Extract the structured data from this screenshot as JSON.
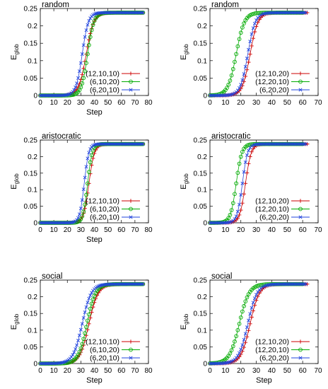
{
  "chart_data": [
    {
      "type": "line",
      "title": "random",
      "xlabel": "Step",
      "ylabel": "E",
      "ylabel_sub": "glob",
      "xlim": [
        0,
        80
      ],
      "ylim": [
        0,
        0.25
      ],
      "xticks": [
        "0",
        "10",
        "20",
        "30",
        "40",
        "50",
        "60",
        "70",
        "80"
      ],
      "yticks": [
        "0",
        "0.05",
        "0.1",
        "0.15",
        "0.2",
        "0.25"
      ],
      "legend": "bottom-right",
      "series": [
        {
          "name": "(12,10,10)",
          "marker": "plus",
          "color": "#cc0000",
          "x_end": 76,
          "mid": 34,
          "k": 0.36
        },
        {
          "name": "(6,10,20)",
          "marker": "circle",
          "color": "#00aa00",
          "x_end": 76,
          "mid": 35,
          "k": 0.44
        },
        {
          "name": "(6,20,10)",
          "marker": "cross",
          "color": "#2244dd",
          "x_end": 76,
          "mid": 31,
          "k": 0.44
        }
      ],
      "plateau": 0.238
    },
    {
      "type": "line",
      "title": "random",
      "xlabel": "",
      "ylabel": "E",
      "ylabel_sub": "glob",
      "xlim": [
        0,
        70
      ],
      "ylim": [
        0,
        0.25
      ],
      "xticks": [
        "0",
        "10",
        "20",
        "30",
        "40",
        "50",
        "60",
        "70"
      ],
      "yticks": [
        "0",
        "0.05",
        "0.1",
        "0.15",
        "0.2",
        "0.25"
      ],
      "legend": "bottom-right",
      "series": [
        {
          "name": "(12,10,20)",
          "marker": "plus",
          "color": "#cc0000",
          "x_end": 63,
          "mid": 26,
          "k": 0.4
        },
        {
          "name": "(12,20,10)",
          "marker": "circle",
          "color": "#00aa00",
          "x_end": 60,
          "mid": 17,
          "k": 0.38
        },
        {
          "name": "(6,20,20)",
          "marker": "cross",
          "color": "#2244dd",
          "x_end": 62,
          "mid": 24.5,
          "k": 0.42
        }
      ],
      "plateau": 0.238
    },
    {
      "type": "line",
      "title": "aristocratic",
      "xlabel": "Step",
      "ylabel": "E",
      "ylabel_sub": "glob",
      "xlim": [
        0,
        80
      ],
      "ylim": [
        0,
        0.25
      ],
      "xticks": [
        "0",
        "10",
        "20",
        "30",
        "40",
        "50",
        "60",
        "70",
        "80"
      ],
      "yticks": [
        "0",
        "0.05",
        "0.1",
        "0.15",
        "0.2",
        "0.25"
      ],
      "legend": "bottom-right",
      "series": [
        {
          "name": "(12,10,10)",
          "marker": "plus",
          "color": "#cc0000",
          "x_end": 76,
          "mid": 36,
          "k": 0.5
        },
        {
          "name": "(6,10,20)",
          "marker": "circle",
          "color": "#00aa00",
          "x_end": 76,
          "mid": 35,
          "k": 0.6
        },
        {
          "name": "(6,20,10)",
          "marker": "cross",
          "color": "#2244dd",
          "x_end": 76,
          "mid": 32.5,
          "k": 0.6
        }
      ],
      "plateau": 0.238
    },
    {
      "type": "line",
      "title": "aristocratic",
      "xlabel": "",
      "ylabel": "E",
      "ylabel_sub": "glob",
      "xlim": [
        0,
        70
      ],
      "ylim": [
        0,
        0.25
      ],
      "xticks": [
        "0",
        "10",
        "20",
        "30",
        "40",
        "50",
        "60",
        "70"
      ],
      "yticks": [
        "0",
        "0.05",
        "0.1",
        "0.15",
        "0.2",
        "0.25"
      ],
      "legend": "bottom-right",
      "series": [
        {
          "name": "(12,10,20)",
          "marker": "plus",
          "color": "#cc0000",
          "x_end": 63,
          "mid": 23,
          "k": 0.55
        },
        {
          "name": "(12,20,10)",
          "marker": "circle",
          "color": "#00aa00",
          "x_end": 60,
          "mid": 17,
          "k": 0.55
        },
        {
          "name": "(6,20,20)",
          "marker": "cross",
          "color": "#2244dd",
          "x_end": 62,
          "mid": 21,
          "k": 0.6
        }
      ],
      "plateau": 0.238
    },
    {
      "type": "line",
      "title": "social",
      "xlabel": "Step",
      "ylabel": "E",
      "ylabel_sub": "glob",
      "xlim": [
        0,
        80
      ],
      "ylim": [
        0,
        0.25
      ],
      "xticks": [
        "0",
        "10",
        "20",
        "30",
        "40",
        "50",
        "60",
        "70",
        "80"
      ],
      "yticks": [
        "0",
        "0.05",
        "0.1",
        "0.15",
        "0.2",
        "0.25"
      ],
      "legend": "bottom-right",
      "series": [
        {
          "name": "(12,10,10)",
          "marker": "plus",
          "color": "#cc0000",
          "x_end": 76,
          "mid": 36,
          "k": 0.3
        },
        {
          "name": "(6,10,20)",
          "marker": "circle",
          "color": "#00aa00",
          "x_end": 76,
          "mid": 34.5,
          "k": 0.32
        },
        {
          "name": "(6,20,10)",
          "marker": "cross",
          "color": "#2244dd",
          "x_end": 76,
          "mid": 31,
          "k": 0.3
        }
      ],
      "plateau": 0.238
    },
    {
      "type": "line",
      "title": "social",
      "xlabel": "Step",
      "ylabel": "E",
      "ylabel_sub": "glob",
      "xlim": [
        0,
        70
      ],
      "ylim": [
        0,
        0.25
      ],
      "xticks": [
        "0",
        "10",
        "20",
        "30",
        "40",
        "50",
        "60",
        "70"
      ],
      "yticks": [
        "0",
        "0.05",
        "0.1",
        "0.15",
        "0.2",
        "0.25"
      ],
      "legend": "bottom-right",
      "series": [
        {
          "name": "(12,10,20)",
          "marker": "plus",
          "color": "#cc0000",
          "x_end": 63,
          "mid": 26,
          "k": 0.34
        },
        {
          "name": "(12,20,10)",
          "marker": "circle",
          "color": "#00aa00",
          "x_end": 60,
          "mid": 19,
          "k": 0.32
        },
        {
          "name": "(6,20,20)",
          "marker": "cross",
          "color": "#2244dd",
          "x_end": 62,
          "mid": 24.5,
          "k": 0.34
        }
      ],
      "plateau": 0.238
    }
  ]
}
